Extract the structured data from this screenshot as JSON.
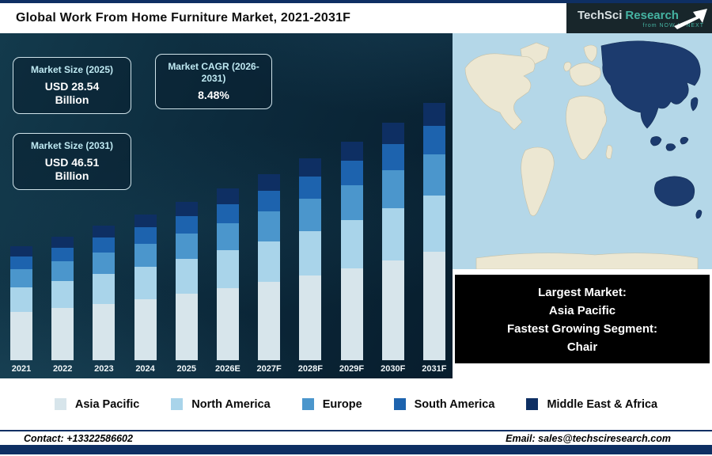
{
  "page": {
    "title": "Global Work From Home Furniture Market, 2021-2031F"
  },
  "logo": {
    "brand": "TechSci",
    "brand2": "Research",
    "tagline": "from NOW to NEXT"
  },
  "info_boxes": {
    "market_size_2025": {
      "title": "Market Size (2025)",
      "value": "USD 28.54",
      "unit": "Billion"
    },
    "market_cagr": {
      "title": "Market CAGR (2026-2031)",
      "value": "8.48%"
    },
    "market_size_2031": {
      "title": "Market Size (2031)",
      "value": "USD 46.51",
      "unit": "Billion"
    }
  },
  "chart_data": {
    "type": "bar",
    "stacked": true,
    "title": "Global Work From Home Furniture Market, 2021-2031F",
    "categories": [
      "2021",
      "2022",
      "2023",
      "2024",
      "2025",
      "2026E",
      "2027F",
      "2028F",
      "2029F",
      "2030F",
      "2031F"
    ],
    "series": [
      {
        "name": "Asia Pacific",
        "color": "#d7e5eb",
        "values": [
          8.66,
          9.39,
          10.19,
          11.05,
          11.99,
          13.0,
          14.11,
          15.3,
          16.6,
          18.01,
          19.53
        ]
      },
      {
        "name": "North America",
        "color": "#a9d4ea",
        "values": [
          4.53,
          4.92,
          5.34,
          5.79,
          6.28,
          6.81,
          7.39,
          8.01,
          8.69,
          9.43,
          10.23
        ]
      },
      {
        "name": "Europe",
        "color": "#4b96cc",
        "values": [
          3.3,
          3.58,
          3.88,
          4.21,
          4.57,
          4.95,
          5.37,
          5.83,
          6.32,
          6.86,
          7.44
        ]
      },
      {
        "name": "South America",
        "color": "#1d63ae",
        "values": [
          2.27,
          2.46,
          2.67,
          2.89,
          3.14,
          3.41,
          3.69,
          4.01,
          4.35,
          4.72,
          5.12
        ]
      },
      {
        "name": "Middle East & Africa",
        "color": "#0e2f63",
        "values": [
          1.85,
          2.01,
          2.18,
          2.37,
          2.57,
          2.79,
          3.02,
          3.28,
          3.56,
          3.86,
          4.19
        ]
      }
    ],
    "totals": [
      20.61,
      22.36,
      24.25,
      26.31,
      28.54,
      30.96,
      33.59,
      36.43,
      39.52,
      42.88,
      46.51
    ],
    "ylim": [
      0,
      48
    ],
    "grid": false,
    "legend_position": "bottom"
  },
  "map": {
    "highlighted_region": "Asia Pacific",
    "ocean_color": "#b4d7e8",
    "land_color": "#ece7d2",
    "highlight_color": "#1c3b6e"
  },
  "callout": {
    "line1": "Largest Market:",
    "line2": "Asia Pacific",
    "line3": "Fastest Growing Segment:",
    "line4": "Chair"
  },
  "footer": {
    "contact": "Contact: +13322586602",
    "email": "Email: sales@techsciresearch.com"
  }
}
